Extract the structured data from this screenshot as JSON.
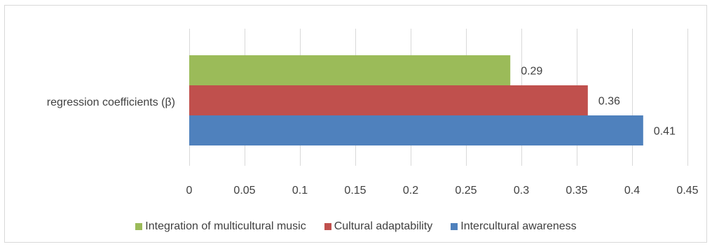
{
  "chart_data": {
    "type": "bar",
    "orientation": "horizontal",
    "categories": [
      "regression coefficients (β)"
    ],
    "series": [
      {
        "name": "Integration of multicultural music",
        "values": [
          0.29
        ],
        "color": "#9bbb59"
      },
      {
        "name": "Cultural adaptability",
        "values": [
          0.36
        ],
        "color": "#c0504d"
      },
      {
        "name": "Intercultural awareness",
        "values": [
          0.41
        ],
        "color": "#4f81bd"
      }
    ],
    "data_labels": [
      "0.29",
      "0.36",
      "0.41"
    ],
    "x_ticks": [
      "0",
      "0.05",
      "0.1",
      "0.15",
      "0.2",
      "0.25",
      "0.3",
      "0.35",
      "0.4",
      "0.45"
    ],
    "xlim": [
      0,
      0.45
    ],
    "grid": "vertical",
    "legend": "bottom",
    "title": "",
    "xlabel": "",
    "ylabel": ""
  }
}
